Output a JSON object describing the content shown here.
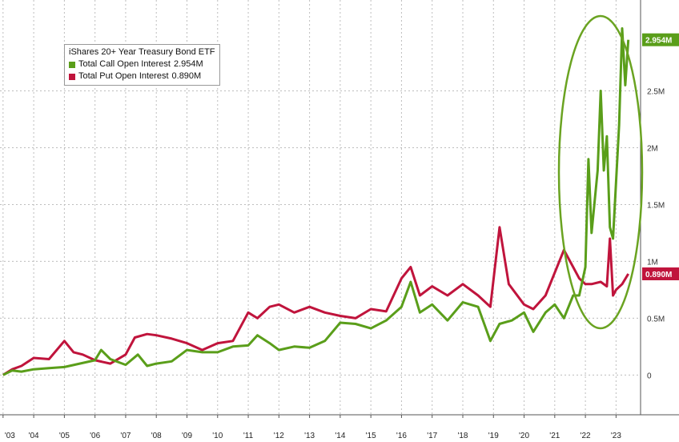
{
  "chart_data": {
    "type": "line",
    "title": "",
    "legend": {
      "title": "iShares 20+ Year Treasury Bond ETF",
      "placement": "top-left",
      "items": [
        {
          "label": "Total Call Open Interest",
          "value": "2.954M"
        },
        {
          "label": "Total Put Open Interest",
          "value": "0.890M"
        }
      ]
    },
    "x_tick_labels": [
      "'03",
      "'04",
      "'05",
      "'06",
      "'07",
      "'08",
      "'09",
      "'10",
      "'11",
      "'12",
      "'13",
      "'14",
      "'15",
      "'16",
      "'17",
      "'18",
      "'19",
      "'20",
      "'21",
      "'22",
      "'23"
    ],
    "y_tick_labels": [
      "0",
      "0.5M",
      "1M",
      "1.5M",
      "2M",
      "2.5M"
    ],
    "ylim": [
      -0.35,
      3.3
    ],
    "xlim": [
      2002.9,
      2023.8
    ],
    "grid": true,
    "annotation": "ellipse highlighting 2021–2023 surge in call open interest",
    "last_value_labels": [
      "2.954M",
      "0.890M"
    ],
    "series": [
      {
        "name": "Total Call Open Interest",
        "color": "#5a9e1a",
        "points": [
          [
            2003.0,
            0.0
          ],
          [
            2003.3,
            0.04
          ],
          [
            2003.6,
            0.03
          ],
          [
            2004.0,
            0.05
          ],
          [
            2004.5,
            0.06
          ],
          [
            2005.0,
            0.07
          ],
          [
            2005.5,
            0.1
          ],
          [
            2006.0,
            0.13
          ],
          [
            2006.2,
            0.22
          ],
          [
            2006.5,
            0.14
          ],
          [
            2007.0,
            0.09
          ],
          [
            2007.4,
            0.18
          ],
          [
            2007.7,
            0.08
          ],
          [
            2008.0,
            0.1
          ],
          [
            2008.5,
            0.12
          ],
          [
            2009.0,
            0.22
          ],
          [
            2009.5,
            0.2
          ],
          [
            2010.0,
            0.2
          ],
          [
            2010.5,
            0.25
          ],
          [
            2011.0,
            0.26
          ],
          [
            2011.3,
            0.35
          ],
          [
            2011.7,
            0.28
          ],
          [
            2012.0,
            0.22
          ],
          [
            2012.5,
            0.25
          ],
          [
            2013.0,
            0.24
          ],
          [
            2013.5,
            0.3
          ],
          [
            2014.0,
            0.46
          ],
          [
            2014.5,
            0.45
          ],
          [
            2015.0,
            0.41
          ],
          [
            2015.5,
            0.48
          ],
          [
            2016.0,
            0.6
          ],
          [
            2016.3,
            0.82
          ],
          [
            2016.6,
            0.55
          ],
          [
            2017.0,
            0.62
          ],
          [
            2017.5,
            0.48
          ],
          [
            2018.0,
            0.64
          ],
          [
            2018.5,
            0.6
          ],
          [
            2018.9,
            0.3
          ],
          [
            2019.2,
            0.45
          ],
          [
            2019.6,
            0.48
          ],
          [
            2020.0,
            0.55
          ],
          [
            2020.3,
            0.38
          ],
          [
            2020.7,
            0.55
          ],
          [
            2021.0,
            0.62
          ],
          [
            2021.3,
            0.5
          ],
          [
            2021.6,
            0.7
          ],
          [
            2021.8,
            0.7
          ],
          [
            2022.0,
            0.95
          ],
          [
            2022.1,
            1.9
          ],
          [
            2022.2,
            1.25
          ],
          [
            2022.4,
            1.8
          ],
          [
            2022.5,
            2.5
          ],
          [
            2022.6,
            1.8
          ],
          [
            2022.7,
            2.1
          ],
          [
            2022.8,
            1.3
          ],
          [
            2022.9,
            1.2
          ],
          [
            2023.0,
            1.7
          ],
          [
            2023.1,
            2.2
          ],
          [
            2023.2,
            3.05
          ],
          [
            2023.3,
            2.55
          ],
          [
            2023.4,
            2.95
          ]
        ]
      },
      {
        "name": "Total Put Open Interest",
        "color": "#c0143c",
        "points": [
          [
            2003.0,
            0.0
          ],
          [
            2003.3,
            0.05
          ],
          [
            2003.6,
            0.08
          ],
          [
            2004.0,
            0.15
          ],
          [
            2004.5,
            0.14
          ],
          [
            2005.0,
            0.3
          ],
          [
            2005.3,
            0.2
          ],
          [
            2005.6,
            0.18
          ],
          [
            2006.0,
            0.13
          ],
          [
            2006.5,
            0.1
          ],
          [
            2007.0,
            0.18
          ],
          [
            2007.3,
            0.33
          ],
          [
            2007.7,
            0.36
          ],
          [
            2008.0,
            0.35
          ],
          [
            2008.5,
            0.32
          ],
          [
            2009.0,
            0.28
          ],
          [
            2009.5,
            0.22
          ],
          [
            2010.0,
            0.28
          ],
          [
            2010.5,
            0.3
          ],
          [
            2011.0,
            0.55
          ],
          [
            2011.3,
            0.5
          ],
          [
            2011.7,
            0.6
          ],
          [
            2012.0,
            0.62
          ],
          [
            2012.5,
            0.55
          ],
          [
            2013.0,
            0.6
          ],
          [
            2013.5,
            0.55
          ],
          [
            2014.0,
            0.52
          ],
          [
            2014.5,
            0.5
          ],
          [
            2015.0,
            0.58
          ],
          [
            2015.5,
            0.56
          ],
          [
            2016.0,
            0.85
          ],
          [
            2016.3,
            0.95
          ],
          [
            2016.6,
            0.7
          ],
          [
            2017.0,
            0.78
          ],
          [
            2017.5,
            0.7
          ],
          [
            2018.0,
            0.8
          ],
          [
            2018.5,
            0.7
          ],
          [
            2018.9,
            0.6
          ],
          [
            2019.2,
            1.3
          ],
          [
            2019.5,
            0.8
          ],
          [
            2020.0,
            0.62
          ],
          [
            2020.3,
            0.58
          ],
          [
            2020.7,
            0.7
          ],
          [
            2021.0,
            0.9
          ],
          [
            2021.3,
            1.1
          ],
          [
            2021.6,
            0.95
          ],
          [
            2021.8,
            0.85
          ],
          [
            2022.0,
            0.8
          ],
          [
            2022.2,
            0.8
          ],
          [
            2022.5,
            0.82
          ],
          [
            2022.7,
            0.78
          ],
          [
            2022.8,
            1.2
          ],
          [
            2022.9,
            0.7
          ],
          [
            2023.0,
            0.75
          ],
          [
            2023.2,
            0.8
          ],
          [
            2023.4,
            0.89
          ]
        ]
      }
    ]
  }
}
